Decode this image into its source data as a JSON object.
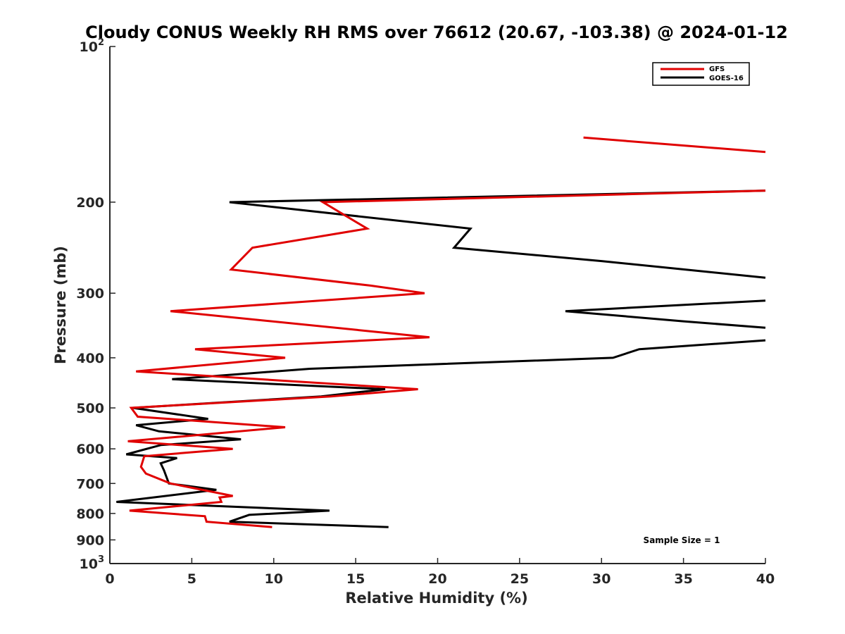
{
  "chart_data": {
    "type": "line",
    "title": "Cloudy CONUS Weekly RH RMS over 76612 (20.67, -103.38) @ 2024-01-12",
    "xlabel": "Relative Humidity (%)",
    "ylabel": "Pressure (mb)",
    "xlim": [
      0,
      40
    ],
    "ylim": [
      100,
      1000
    ],
    "yscale": "log",
    "yreversed": true,
    "x_ticks": [
      {
        "value": 0,
        "label": "0"
      },
      {
        "value": 5,
        "label": "5"
      },
      {
        "value": 10,
        "label": "10"
      },
      {
        "value": 15,
        "label": "15"
      },
      {
        "value": 20,
        "label": "20"
      },
      {
        "value": 25,
        "label": "25"
      },
      {
        "value": 30,
        "label": "30"
      },
      {
        "value": 35,
        "label": "35"
      },
      {
        "value": 40,
        "label": "40"
      }
    ],
    "y_ticks": [
      {
        "value": 100,
        "label": "10",
        "sup": "2"
      },
      {
        "value": 200,
        "label": "200"
      },
      {
        "value": 300,
        "label": "300"
      },
      {
        "value": 400,
        "label": "400"
      },
      {
        "value": 500,
        "label": "500"
      },
      {
        "value": 600,
        "label": "600"
      },
      {
        "value": 700,
        "label": "700"
      },
      {
        "value": 800,
        "label": "800"
      },
      {
        "value": 900,
        "label": "900"
      },
      {
        "value": 1000,
        "label": "10",
        "sup": "3"
      }
    ],
    "legend": {
      "location": "top-right"
    },
    "annotation": "Sample Size = 1",
    "series": [
      {
        "name": "GFS",
        "color": "#e00000",
        "segments": [
          [
            [
              28.9,
              150
            ],
            [
              40,
              160
            ]
          ],
          [
            [
              40,
              190
            ],
            [
              13,
              200
            ],
            [
              15.7,
              225
            ],
            [
              8.7,
              245
            ],
            [
              7.4,
              270
            ],
            [
              15.9,
              290
            ],
            [
              19.2,
              300
            ],
            [
              3.7,
              325
            ],
            [
              19.5,
              365
            ],
            [
              5.2,
              385
            ],
            [
              10.7,
              400
            ],
            [
              1.6,
              425
            ],
            [
              18.8,
              460
            ],
            [
              13.5,
              475
            ],
            [
              1.3,
              500
            ],
            [
              1.7,
              520
            ],
            [
              10.7,
              545
            ],
            [
              1.1,
              580
            ],
            [
              7.5,
              600
            ],
            [
              2.1,
              620
            ],
            [
              1.9,
              650
            ],
            [
              2.2,
              670
            ],
            [
              3.7,
              700
            ],
            [
              7.5,
              740
            ],
            [
              6.7,
              745
            ],
            [
              6.8,
              760
            ],
            [
              1.2,
              790
            ],
            [
              5.8,
              810
            ],
            [
              5.9,
              830
            ],
            [
              9.9,
              850
            ]
          ]
        ]
      },
      {
        "name": "GOES-16",
        "color": "#000000",
        "segments": [
          [
            [
              40,
              190
            ],
            [
              7.3,
              200
            ],
            [
              22,
              225
            ],
            [
              21,
              245
            ],
            [
              30,
              260
            ],
            [
              40,
              280
            ]
          ],
          [
            [
              40,
              310
            ],
            [
              27.8,
              325
            ],
            [
              35,
              340
            ],
            [
              40,
              350
            ]
          ],
          [
            [
              40,
              370
            ],
            [
              32.3,
              385
            ],
            [
              30.7,
              400
            ],
            [
              12.2,
              420
            ],
            [
              3.8,
              440
            ],
            [
              16.8,
              460
            ],
            [
              12.9,
              475
            ],
            [
              1.4,
              500
            ],
            [
              6,
              525
            ],
            [
              1.6,
              540
            ],
            [
              3,
              555
            ],
            [
              8,
              575
            ],
            [
              3.1,
              590
            ],
            [
              1,
              615
            ],
            [
              4.1,
              625
            ],
            [
              3.1,
              640
            ],
            [
              3.3,
              660
            ],
            [
              3.6,
              700
            ],
            [
              6.5,
              720
            ],
            [
              0.4,
              760
            ],
            [
              13.4,
              790
            ],
            [
              8.5,
              805
            ],
            [
              7.3,
              830
            ],
            [
              17,
              850
            ]
          ]
        ]
      }
    ]
  }
}
